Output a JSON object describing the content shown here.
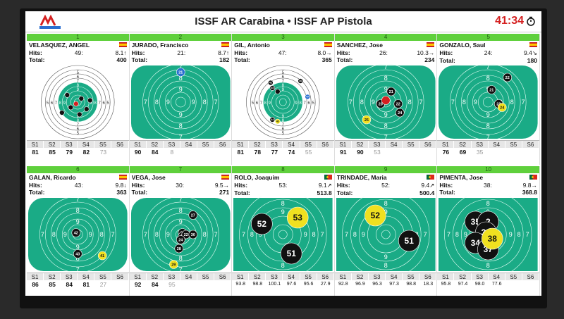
{
  "header": {
    "title": "ISSF AR Carabina • ISSF AP  Pistola",
    "clock": "41:34",
    "colors": {
      "green": "#1aab86",
      "bar": "#5fd03c",
      "clock": "#d42020"
    }
  },
  "series_labels": [
    "S1",
    "S2",
    "S3",
    "S4",
    "S5",
    "S6"
  ],
  "panels": [
    {
      "lane": "1",
      "name": "VELASQUEZ, ANGEL",
      "flag": "es",
      "hits_label": "Hits:",
      "hits": "49:",
      "last": "8.1",
      "arrow": "↑",
      "total_label": "Total:",
      "total": "400",
      "target": "rifle",
      "small": false,
      "scores": [
        "81",
        "85",
        "79",
        "82",
        "73",
        ""
      ],
      "shots": [
        [
          "",
          -0.05,
          0.05
        ],
        [
          "",
          0.1,
          -0.1
        ],
        [
          "",
          -0.2,
          0.15
        ],
        [
          "",
          0.25,
          0.2
        ],
        [
          "",
          -0.3,
          -0.2
        ],
        [
          "",
          0.05,
          0.35
        ],
        [
          "",
          0.35,
          -0.05
        ],
        [
          "",
          -0.45,
          0.3
        ]
      ]
    },
    {
      "lane": "2",
      "name": "JURADO, Francisco",
      "flag": "es",
      "hits_label": "Hits:",
      "hits": "21:",
      "last": "8.7",
      "arrow": "↑",
      "total_label": "Total:",
      "total": "182",
      "target": "pistol",
      "small": false,
      "scores": [
        "90",
        "84",
        "8",
        "",
        "",
        ""
      ],
      "shots": [
        [
          "21",
          0.0,
          -0.85
        ]
      ]
    },
    {
      "lane": "3",
      "name": "GIL, Antonio",
      "flag": "es",
      "hits_label": "Hits:",
      "hits": "47:",
      "last": "8.0",
      "arrow": "→",
      "total_label": "Total:",
      "total": "365",
      "target": "rifle",
      "small": false,
      "scores": [
        "81",
        "78",
        "77",
        "74",
        "55",
        ""
      ],
      "shots": [
        [
          "42",
          -0.35,
          -0.55
        ],
        [
          "46",
          0.5,
          -0.6
        ],
        [
          "45",
          -0.3,
          -0.4
        ],
        [
          "",
          -0.15,
          -0.3
        ],
        [
          "47",
          0.7,
          -0.15
        ],
        [
          "44",
          -0.3,
          0.5
        ],
        [
          "43",
          -0.15,
          0.55
        ]
      ]
    },
    {
      "lane": "4",
      "name": "SANCHEZ, Jose",
      "flag": "es",
      "hits_label": "Hits:",
      "hits": "26:",
      "last": "10.3",
      "arrow": "→",
      "total_label": "Total:",
      "total": "234",
      "target": "pistol",
      "small": false,
      "scores": [
        "91",
        "90",
        "53",
        "",
        "",
        ""
      ],
      "shots": [
        [
          "21",
          0.15,
          -0.3
        ],
        [
          "23",
          -0.15,
          0.05
        ],
        [
          "",
          0.0,
          -0.05
        ],
        [
          "22",
          0.35,
          0.05
        ],
        [
          "24",
          0.4,
          0.3
        ],
        [
          "25",
          -0.55,
          0.5
        ]
      ]
    },
    {
      "lane": "5",
      "name": "GONZALO, Saul",
      "flag": "es",
      "hits_label": "Hits:",
      "hits": "24:",
      "last": "9.4",
      "arrow": "↘",
      "total_label": "Total:",
      "total": "180",
      "target": "pistol",
      "small": false,
      "scores": [
        "76",
        "69",
        "35",
        "",
        "",
        ""
      ],
      "shots": [
        [
          "22",
          0.55,
          -0.7
        ],
        [
          "21",
          0.1,
          -0.35
        ],
        [
          "23",
          0.3,
          0.05
        ],
        [
          "24",
          0.4,
          0.15
        ]
      ]
    },
    {
      "lane": "6",
      "name": "GALAN, Ricardo",
      "flag": "es",
      "hits_label": "Hits:",
      "hits": "43:",
      "last": "9.8",
      "arrow": "↓",
      "total_label": "Total:",
      "total": "363",
      "target": "pistol",
      "small": false,
      "scores": [
        "86",
        "85",
        "84",
        "81",
        "27",
        ""
      ],
      "shots": [
        [
          "42",
          -0.05,
          -0.05
        ],
        [
          "43",
          0.0,
          0.55
        ],
        [
          "41",
          0.7,
          0.6
        ]
      ]
    },
    {
      "lane": "7",
      "name": "VEGA, Jose",
      "flag": "es",
      "hits_label": "Hits:",
      "hits": "30:",
      "last": "9.5",
      "arrow": "→",
      "total_label": "Total:",
      "total": "271",
      "target": "pistol",
      "small": false,
      "scores": [
        "92",
        "84",
        "95",
        "",
        "",
        ""
      ],
      "shots": [
        [
          "27",
          0.35,
          -0.55
        ],
        [
          "26",
          0.05,
          -0.05
        ],
        [
          "25",
          0.05,
          0.05
        ],
        [
          "22",
          0.15,
          0.0
        ],
        [
          "30",
          0.35,
          0.0
        ],
        [
          "24",
          0.0,
          0.15
        ],
        [
          "28",
          -0.05,
          0.4
        ],
        [
          "29",
          -0.2,
          0.85
        ]
      ]
    },
    {
      "lane": "8",
      "name": "ROLO, Joaquim",
      "flag": "pt",
      "hits_label": "Hits:",
      "hits": "53:",
      "last": "9.1",
      "arrow": "↗",
      "total_label": "Total:",
      "total": "513.8",
      "target": "big",
      "small": true,
      "scores": [
        "93.8",
        "98.8",
        "100.1",
        "97.6",
        "95.6",
        "27.9"
      ],
      "shots": [
        [
          "52",
          -0.5,
          -0.25
        ],
        [
          "53",
          0.35,
          -0.4
        ],
        [
          "51",
          0.2,
          0.45
        ]
      ]
    },
    {
      "lane": "9",
      "name": "TRINDADE, Maria",
      "flag": "pt",
      "hits_label": "Hits:",
      "hits": "52:",
      "last": "9.4",
      "arrow": "↗",
      "total_label": "Total:",
      "total": "500.4",
      "target": "big",
      "small": true,
      "scores": [
        "92.8",
        "96.9",
        "96.3",
        "97.3",
        "98.8",
        "18.3"
      ],
      "shots": [
        [
          "52",
          -0.25,
          -0.45
        ],
        [
          "51",
          0.55,
          0.15
        ]
      ]
    },
    {
      "lane": "10",
      "name": "PIMENTA, Jose",
      "flag": "pt",
      "hits_label": "Hits:",
      "hits": "38:",
      "last": "9.8",
      "arrow": "→",
      "total_label": "Total:",
      "total": "368.8",
      "target": "big",
      "small": true,
      "scores": [
        "95.8",
        "97.4",
        "98.0",
        "77.6",
        "",
        ""
      ],
      "shots": [
        [
          "35",
          -0.3,
          -0.3
        ],
        [
          "2",
          0.0,
          -0.3
        ],
        [
          "36",
          -0.05,
          -0.05
        ],
        [
          "34",
          -0.3,
          0.2
        ],
        [
          "37",
          0.0,
          0.35
        ],
        [
          "38",
          0.1,
          0.1
        ]
      ]
    }
  ]
}
